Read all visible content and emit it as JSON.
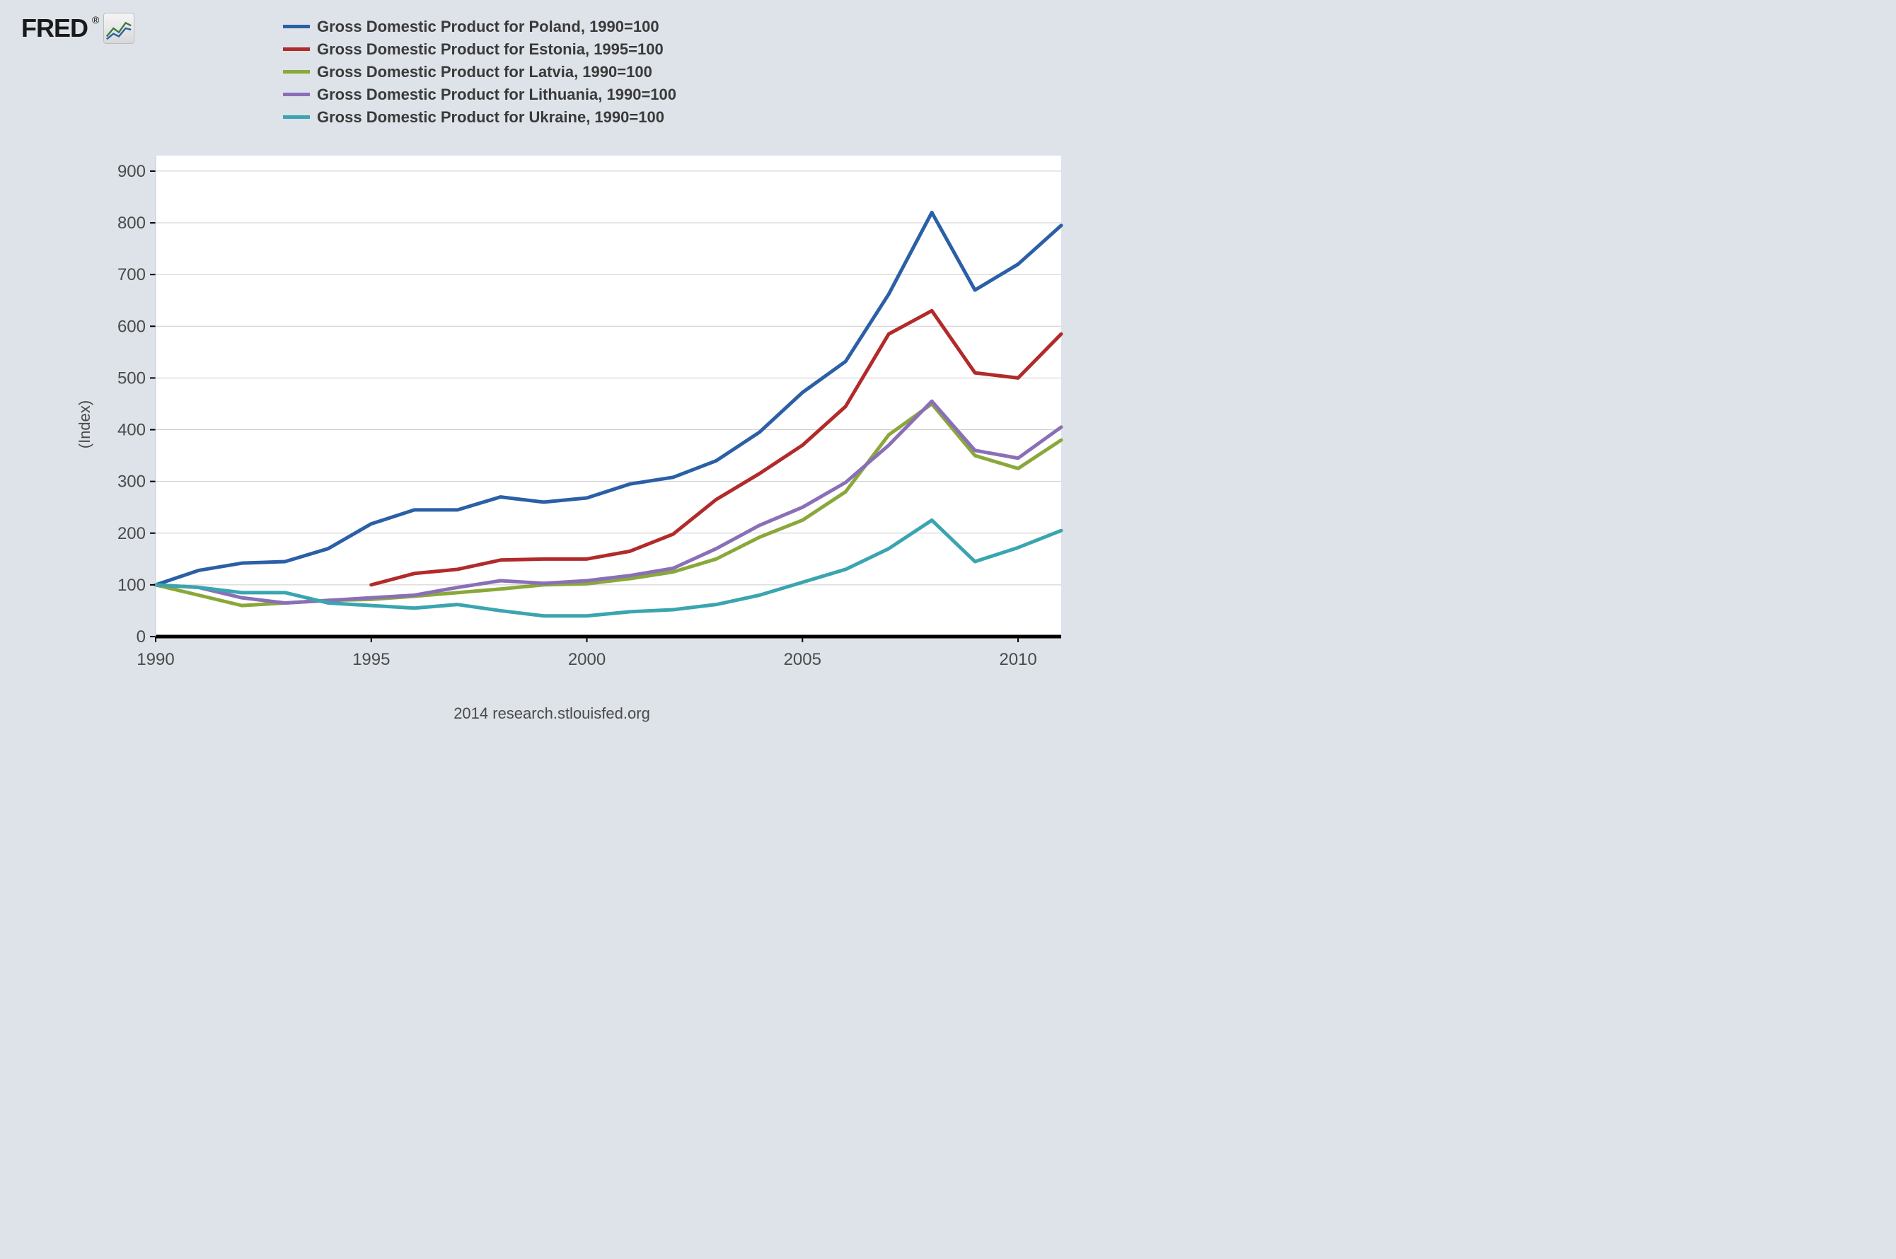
{
  "logo_text": "FRED",
  "logo_has_trademark": true,
  "footer_text": "2014 research.stlouisfed.org",
  "ylabel": "(Index)",
  "background_color": "#dde3e9",
  "plot_background": "#ffffff",
  "grid_color": "#cccccc",
  "axis_color": "#000000",
  "label_color": "#4a4a4a",
  "line_width": 5,
  "tick_fontsize": 24,
  "legend_fontsize": 22,
  "legend": [
    {
      "label": "Gross Domestic Product for Poland, 1990=100",
      "color": "#2b5fa6"
    },
    {
      "label": "Gross Domestic Product for Estonia, 1995=100",
      "color": "#b22a2a"
    },
    {
      "label": "Gross Domestic Product for Latvia, 1990=100",
      "color": "#8aa83a"
    },
    {
      "label": "Gross Domestic Product for Lithuania, 1990=100",
      "color": "#8a6fb8"
    },
    {
      "label": "Gross Domestic Product for Ukraine, 1990=100",
      "color": "#3aa5b0"
    }
  ],
  "xlim": [
    1990,
    2011
  ],
  "ylim": [
    0,
    930
  ],
  "xticks": [
    1990,
    1995,
    2000,
    2005,
    2010
  ],
  "yticks": [
    0,
    100,
    200,
    300,
    400,
    500,
    600,
    700,
    800,
    900
  ],
  "series": [
    {
      "name": "Poland",
      "color": "#2b5fa6",
      "years": [
        1990,
        1991,
        1992,
        1993,
        1994,
        1995,
        1996,
        1997,
        1998,
        1999,
        2000,
        2001,
        2002,
        2003,
        2004,
        2005,
        2006,
        2007,
        2008,
        2009,
        2010,
        2011
      ],
      "values": [
        100,
        128,
        142,
        145,
        170,
        218,
        245,
        245,
        270,
        260,
        268,
        295,
        308,
        340,
        395,
        472,
        532,
        662,
        820,
        670,
        720,
        795
      ]
    },
    {
      "name": "Estonia",
      "color": "#b22a2a",
      "years": [
        1995,
        1996,
        1997,
        1998,
        1999,
        2000,
        2001,
        2002,
        2003,
        2004,
        2005,
        2006,
        2007,
        2008,
        2009,
        2010,
        2011
      ],
      "values": [
        100,
        122,
        130,
        148,
        150,
        150,
        165,
        198,
        265,
        315,
        370,
        445,
        585,
        630,
        510,
        500,
        585
      ]
    },
    {
      "name": "Latvia",
      "color": "#8aa83a",
      "years": [
        1990,
        1991,
        1992,
        1993,
        1994,
        1995,
        1996,
        1997,
        1998,
        1999,
        2000,
        2001,
        2002,
        2003,
        2004,
        2005,
        2006,
        2007,
        2008,
        2009,
        2010,
        2011
      ],
      "values": [
        100,
        80,
        60,
        65,
        70,
        72,
        78,
        85,
        92,
        100,
        102,
        112,
        125,
        150,
        192,
        225,
        280,
        390,
        450,
        350,
        325,
        380
      ]
    },
    {
      "name": "Lithuania",
      "color": "#8a6fb8",
      "years": [
        1990,
        1991,
        1992,
        1993,
        1994,
        1995,
        1996,
        1997,
        1998,
        1999,
        2000,
        2001,
        2002,
        2003,
        2004,
        2005,
        2006,
        2007,
        2008,
        2009,
        2010,
        2011
      ],
      "values": [
        100,
        95,
        75,
        65,
        70,
        75,
        80,
        95,
        108,
        103,
        108,
        118,
        132,
        170,
        215,
        250,
        298,
        370,
        455,
        360,
        345,
        405
      ]
    },
    {
      "name": "Ukraine",
      "color": "#3aa5b0",
      "years": [
        1990,
        1991,
        1992,
        1993,
        1994,
        1995,
        1996,
        1997,
        1998,
        1999,
        2000,
        2001,
        2002,
        2003,
        2004,
        2005,
        2006,
        2007,
        2008,
        2009,
        2010,
        2011
      ],
      "values": [
        100,
        95,
        85,
        85,
        65,
        60,
        55,
        62,
        50,
        40,
        40,
        48,
        52,
        62,
        80,
        105,
        130,
        170,
        225,
        145,
        172,
        205
      ]
    }
  ],
  "plot_inner_x": 130,
  "plot_inner_y": 10,
  "plot_inner_w": 1280,
  "plot_inner_h": 680,
  "plot_svg_w": 1420,
  "plot_svg_h": 780
}
